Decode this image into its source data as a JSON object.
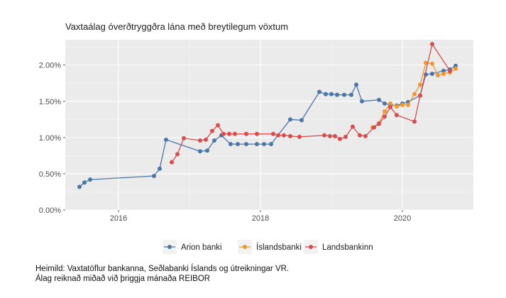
{
  "chart_data": {
    "type": "line",
    "title": "Vaxtaálag óverðtryggðra lána með breytilegum vöxtum",
    "xlabel": "",
    "ylabel": "",
    "xlim": [
      2015.25,
      2021.0
    ],
    "ylim": [
      0.0,
      0.0235
    ],
    "x_ticks": [
      2016,
      2018,
      2020
    ],
    "x_tick_labels": [
      "2016",
      "2018",
      "2020"
    ],
    "y_ticks": [
      0.0,
      0.005,
      0.01,
      0.015,
      0.02
    ],
    "y_tick_labels": [
      "0.00%",
      "0.50%",
      "1.00%",
      "1.50%",
      "2.00%"
    ],
    "grid": true,
    "legend_position": "bottom",
    "series": [
      {
        "name": "Arion banki",
        "color": "#4a77a8",
        "points": [
          [
            2015.45,
            0.0032
          ],
          [
            2015.52,
            0.0038
          ],
          [
            2015.6,
            0.0042
          ],
          [
            2016.5,
            0.0047
          ],
          [
            2016.58,
            0.0057
          ],
          [
            2016.67,
            0.0097
          ],
          [
            2017.15,
            0.0081
          ],
          [
            2017.25,
            0.0082
          ],
          [
            2017.35,
            0.0096
          ],
          [
            2017.45,
            0.0103
          ],
          [
            2017.58,
            0.0091
          ],
          [
            2017.68,
            0.0091
          ],
          [
            2017.8,
            0.0091
          ],
          [
            2017.95,
            0.0091
          ],
          [
            2018.05,
            0.0091
          ],
          [
            2018.15,
            0.0091
          ],
          [
            2018.42,
            0.0125
          ],
          [
            2018.58,
            0.0124
          ],
          [
            2018.83,
            0.0163
          ],
          [
            2018.92,
            0.016
          ],
          [
            2019.0,
            0.016
          ],
          [
            2019.08,
            0.0159
          ],
          [
            2019.18,
            0.0159
          ],
          [
            2019.28,
            0.0159
          ],
          [
            2019.35,
            0.0173
          ],
          [
            2019.43,
            0.015
          ],
          [
            2019.67,
            0.0152
          ],
          [
            2019.75,
            0.0147
          ],
          [
            2019.83,
            0.0145
          ],
          [
            2019.92,
            0.0144
          ],
          [
            2020.0,
            0.0147
          ],
          [
            2020.08,
            0.0149
          ],
          [
            2020.25,
            0.0158
          ],
          [
            2020.33,
            0.0187
          ],
          [
            2020.42,
            0.0188
          ],
          [
            2020.58,
            0.0192
          ],
          [
            2020.67,
            0.0194
          ],
          [
            2020.75,
            0.0199
          ]
        ]
      },
      {
        "name": "Íslandsbanki",
        "color": "#f0972f",
        "points": [
          [
            2019.58,
            0.0114
          ],
          [
            2019.67,
            0.012
          ],
          [
            2019.75,
            0.0136
          ],
          [
            2019.83,
            0.0147
          ],
          [
            2019.92,
            0.0143
          ],
          [
            2020.0,
            0.0145
          ],
          [
            2020.08,
            0.0145
          ],
          [
            2020.17,
            0.016
          ],
          [
            2020.25,
            0.0173
          ],
          [
            2020.33,
            0.0203
          ],
          [
            2020.42,
            0.0202
          ],
          [
            2020.5,
            0.0186
          ],
          [
            2020.58,
            0.0188
          ],
          [
            2020.67,
            0.019
          ],
          [
            2020.75,
            0.0195
          ]
        ]
      },
      {
        "name": "Landsbankinn",
        "color": "#d94d4f",
        "points": [
          [
            2016.75,
            0.0066
          ],
          [
            2016.83,
            0.0077
          ],
          [
            2016.92,
            0.0099
          ],
          [
            2017.15,
            0.0096
          ],
          [
            2017.23,
            0.0097
          ],
          [
            2017.32,
            0.0109
          ],
          [
            2017.4,
            0.0117
          ],
          [
            2017.48,
            0.0105
          ],
          [
            2017.56,
            0.0105
          ],
          [
            2017.64,
            0.0105
          ],
          [
            2017.8,
            0.0105
          ],
          [
            2017.95,
            0.0105
          ],
          [
            2018.18,
            0.0105
          ],
          [
            2018.25,
            0.0103
          ],
          [
            2018.33,
            0.0103
          ],
          [
            2018.42,
            0.0102
          ],
          [
            2018.55,
            0.0101
          ],
          [
            2018.9,
            0.0103
          ],
          [
            2018.98,
            0.0102
          ],
          [
            2019.05,
            0.0102
          ],
          [
            2019.12,
            0.0098
          ],
          [
            2019.2,
            0.0101
          ],
          [
            2019.3,
            0.0115
          ],
          [
            2019.4,
            0.0103
          ],
          [
            2019.48,
            0.0102
          ],
          [
            2019.6,
            0.0114
          ],
          [
            2019.67,
            0.0119
          ],
          [
            2019.75,
            0.0129
          ],
          [
            2019.83,
            0.0142
          ],
          [
            2019.92,
            0.0131
          ],
          [
            2020.17,
            0.0122
          ],
          [
            2020.25,
            0.0158
          ],
          [
            2020.42,
            0.0229
          ],
          [
            2020.67,
            0.0192
          ]
        ]
      }
    ],
    "caption": [
      "Heimild: Vaxtatöflur bankanna, Seðlabanki Íslands og útreikningar VR.",
      "Álag reiknað miðað við þriggja mánaða REIBOR"
    ]
  }
}
